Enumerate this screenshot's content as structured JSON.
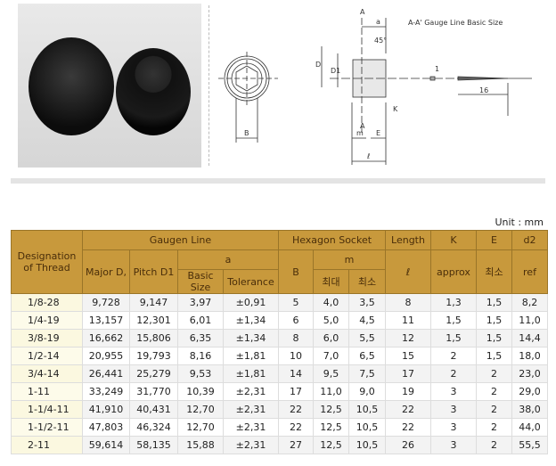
{
  "drawing": {
    "labels": {
      "A_top": "A",
      "a": "a",
      "angle": "45°",
      "D": "D",
      "D1": "D1",
      "B": "B",
      "K": "K",
      "A_bottom": "A",
      "m": "m",
      "E": "E",
      "l": "ℓ",
      "one": "1",
      "sixteen": "16",
      "gauge": "A-A'  Gauge Line Basic Size"
    }
  },
  "unit": "Unit : mm",
  "header": {
    "designation": "Designation of Thread",
    "gaugen": "Gaugen Line",
    "major": "Major D,",
    "pitch": "Pitch D1",
    "a": "a",
    "basic": "Basic Size",
    "tolerance": "Tolerance",
    "hex": "Hexagon Socket",
    "B": "B",
    "m": "m",
    "max": "최대",
    "min": "최소",
    "length": "Length",
    "l": "ℓ",
    "K": "K",
    "approx": "approx",
    "E": "E",
    "Emin": "최소",
    "d2": "d2",
    "ref": "ref"
  },
  "rows": [
    [
      "1/8-28",
      "9,728",
      "9,147",
      "3,97",
      "±0,91",
      "5",
      "4,0",
      "3,5",
      "8",
      "1,3",
      "1,5",
      "8,2"
    ],
    [
      "1/4-19",
      "13,157",
      "12,301",
      "6,01",
      "±1,34",
      "6",
      "5,0",
      "4,5",
      "11",
      "1,5",
      "1,5",
      "11,0"
    ],
    [
      "3/8-19",
      "16,662",
      "15,806",
      "6,35",
      "±1,34",
      "8",
      "6,0",
      "5,5",
      "12",
      "1,5",
      "1,5",
      "14,4"
    ],
    [
      "1/2-14",
      "20,955",
      "19,793",
      "8,16",
      "±1,81",
      "10",
      "7,0",
      "6,5",
      "15",
      "2",
      "1,5",
      "18,0"
    ],
    [
      "3/4-14",
      "26,441",
      "25,279",
      "9,53",
      "±1,81",
      "14",
      "9,5",
      "7,5",
      "17",
      "2",
      "2",
      "23,0"
    ],
    [
      "1-11",
      "33,249",
      "31,770",
      "10,39",
      "±2,31",
      "17",
      "11,0",
      "9,0",
      "19",
      "3",
      "2",
      "29,0"
    ],
    [
      "1-1/4-11",
      "41,910",
      "40,431",
      "12,70",
      "±2,31",
      "22",
      "12,5",
      "10,5",
      "22",
      "3",
      "2",
      "38,0"
    ],
    [
      "1-1/2-11",
      "47,803",
      "46,324",
      "12,70",
      "±2,31",
      "22",
      "12,5",
      "10,5",
      "22",
      "3",
      "2",
      "44,0"
    ],
    [
      "2-11",
      "59,614",
      "58,135",
      "15,88",
      "±2,31",
      "27",
      "12,5",
      "10,5",
      "26",
      "3",
      "2",
      "55,5"
    ]
  ]
}
